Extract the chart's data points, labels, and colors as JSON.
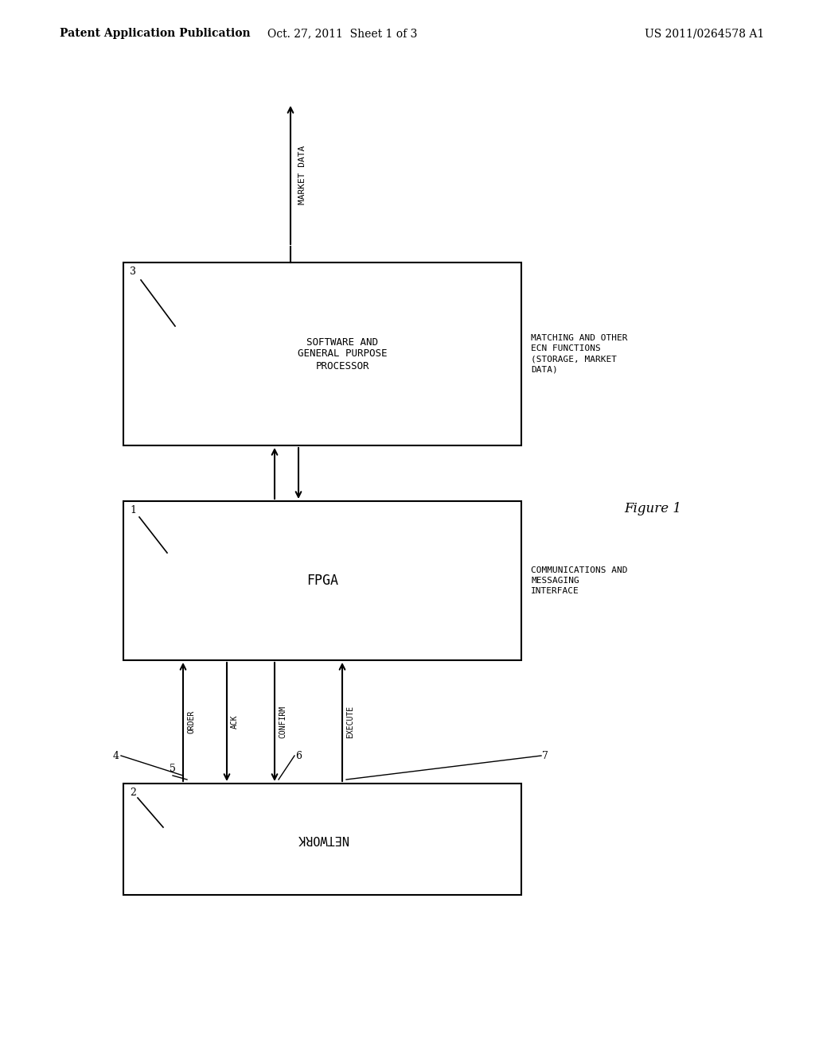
{
  "background_color": "#ffffff",
  "header_left": "Patent Application Publication",
  "header_center": "Oct. 27, 2011  Sheet 1 of 3",
  "header_right": "US 2011/0264578 A1",
  "figure_label": "Figure 1",
  "box1_label": "SOFTWARE AND\nGENERAL PURPOSE\nPROCESSOR",
  "box1_ref": "3",
  "box1_side_label": "MATCHING AND OTHER\nECN FUNCTIONS\n(STORAGE, MARKET\nDATA)",
  "box2_label": "FPGA",
  "box2_ref": "1",
  "box2_side_label": "COMMUNICATIONS AND\nMESSAGING\nINTERFACE",
  "box3_label": "NETWORK",
  "box3_ref": "2",
  "market_data_label": "MARKET DATA",
  "arrow_labels": [
    "ORDER",
    "ACK",
    "CONFIRM",
    "EXECUTE"
  ],
  "arrow_refs": [
    "4",
    "5",
    "6",
    "7"
  ],
  "font_size_header": 10,
  "font_size_box": 9,
  "font_size_side": 8,
  "font_size_ref": 9,
  "font_size_fig": 12
}
